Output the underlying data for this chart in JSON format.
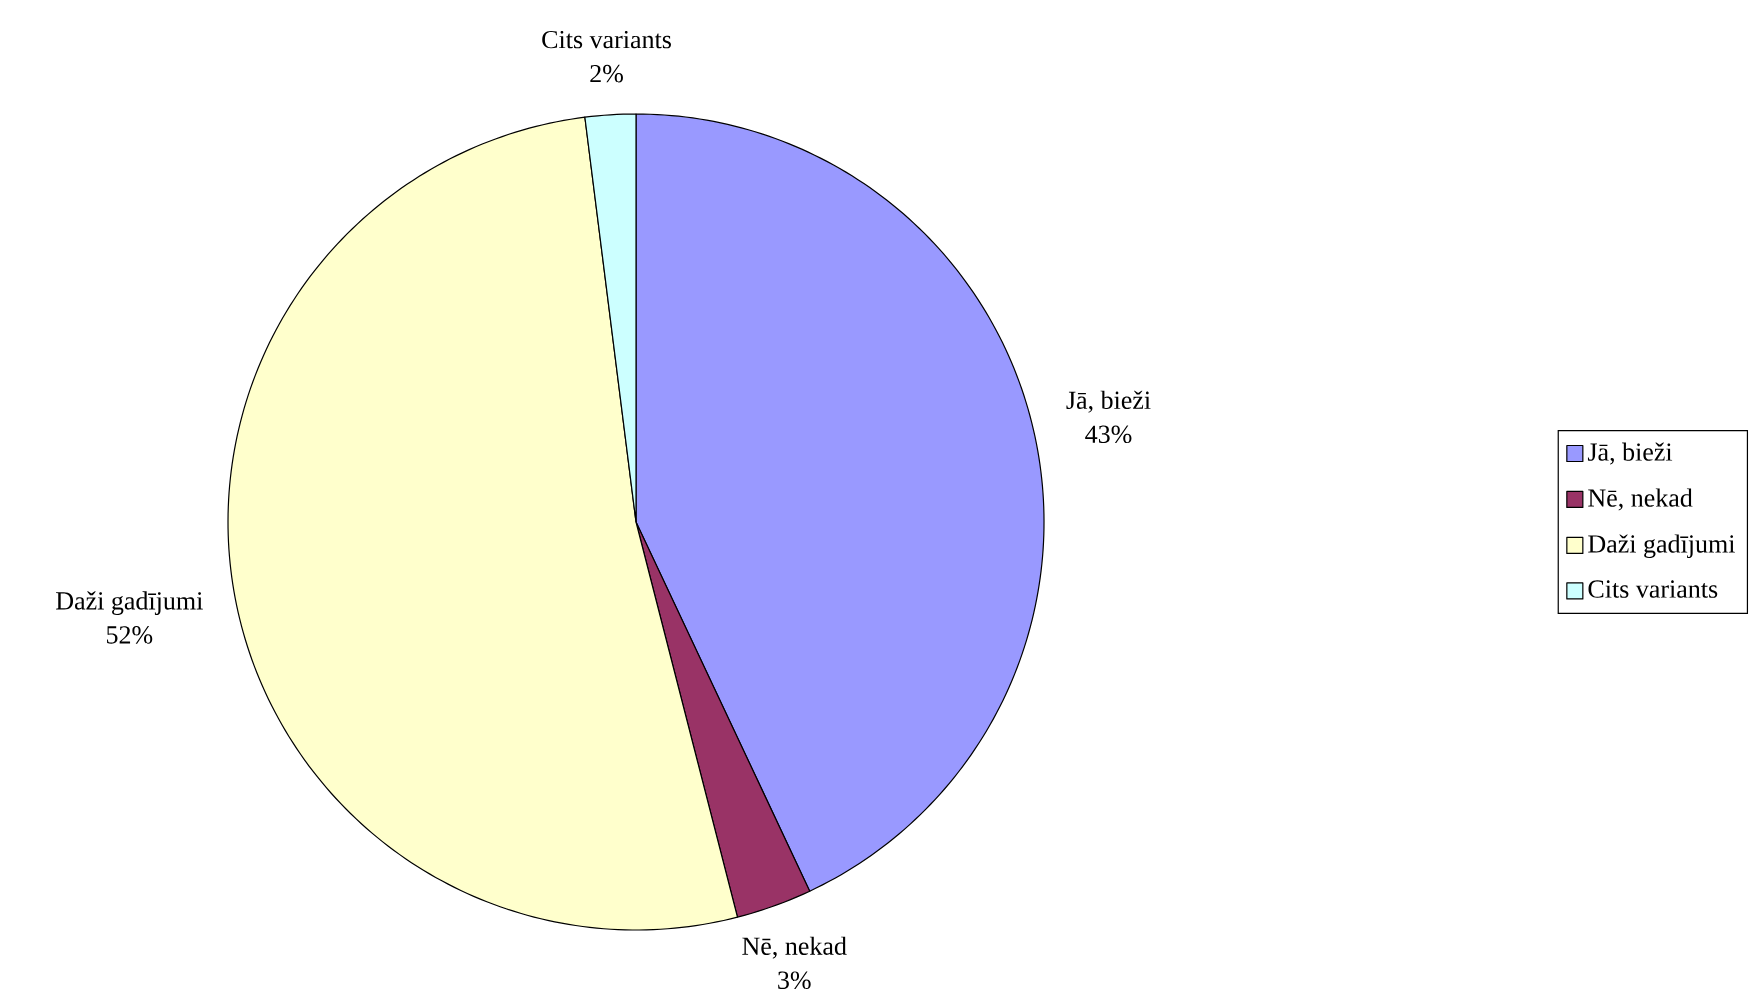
{
  "chart_data": {
    "type": "pie",
    "categories": [
      "Jā, bieži",
      "Nē, nekad",
      "Daži gadījumi",
      "Cits variants"
    ],
    "values": [
      43,
      3,
      52,
      2
    ],
    "value_labels": [
      "43%",
      "3%",
      "52%",
      "2%"
    ],
    "colors": [
      "#9999ff",
      "#993366",
      "#ffffcc",
      "#ccffff"
    ],
    "legend": "right"
  }
}
